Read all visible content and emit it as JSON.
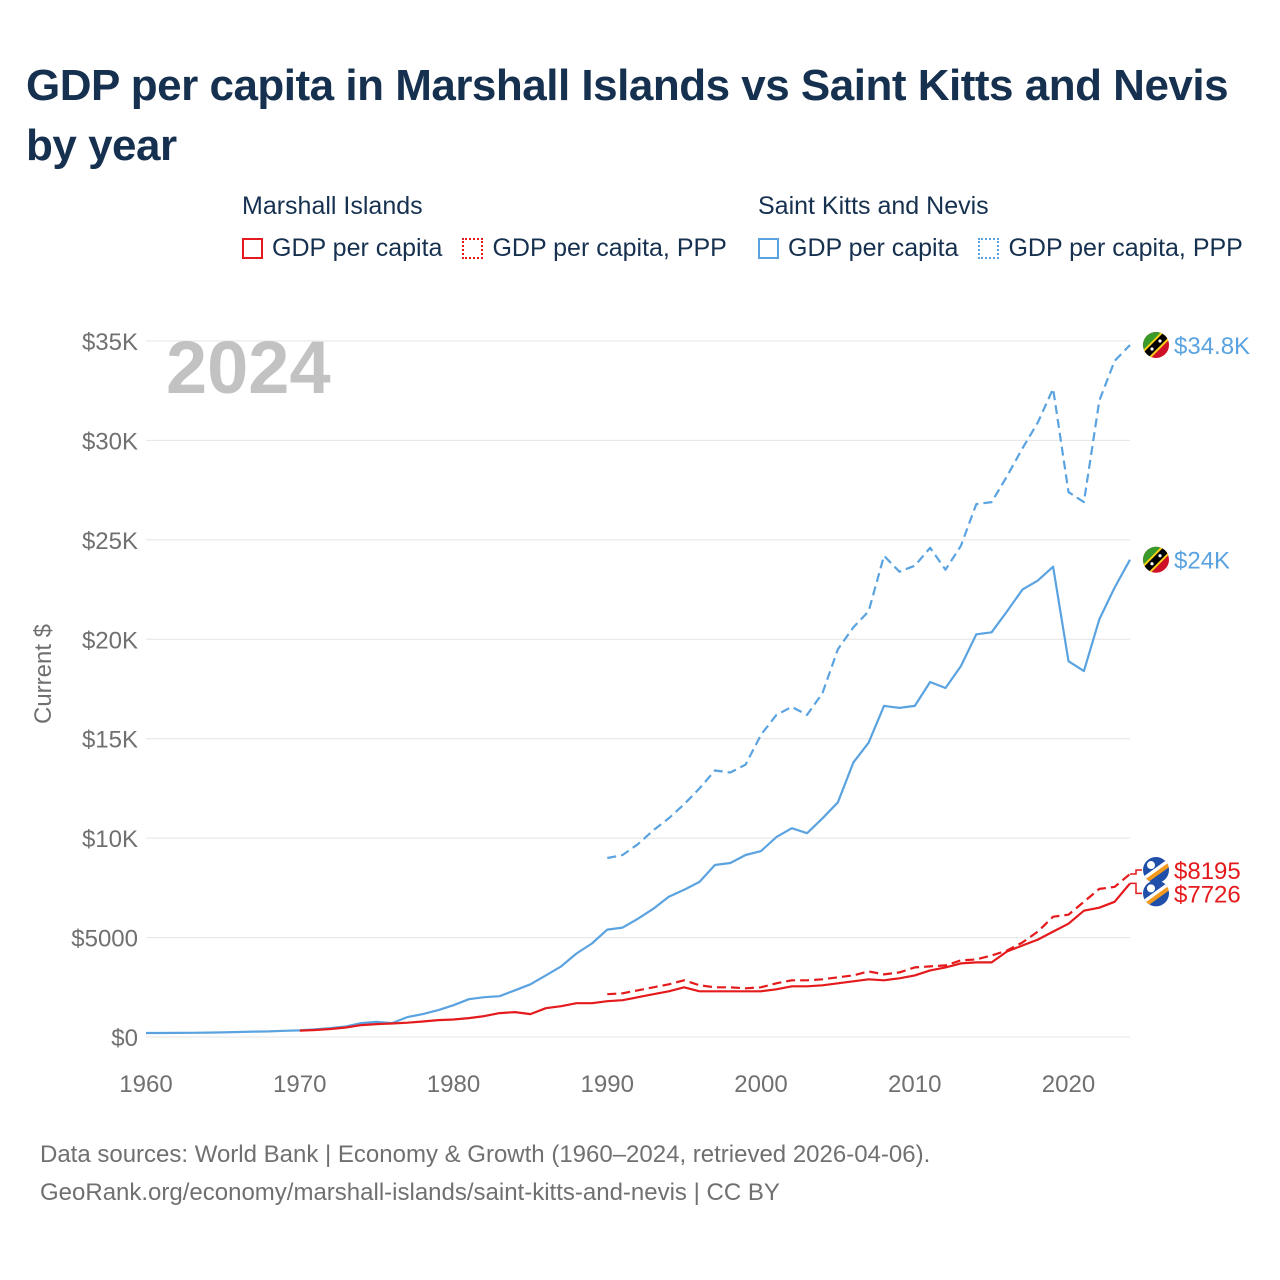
{
  "title": "GDP per capita in Marshall Islands vs Saint Kitts and Nevis by year",
  "year_watermark": "2024",
  "legend": {
    "groups": [
      {
        "name": "Marshall Islands",
        "color": "#e41a1c",
        "items": [
          {
            "label": "GDP per capita",
            "style": "solid"
          },
          {
            "label": "GDP per capita, PPP",
            "style": "dotted"
          }
        ]
      },
      {
        "name": "Saint Kitts and Nevis",
        "color": "#5aa3e0",
        "items": [
          {
            "label": "GDP per capita",
            "style": "solid"
          },
          {
            "label": "GDP per capita, PPP",
            "style": "dotted"
          }
        ]
      }
    ]
  },
  "footer": {
    "line1": "Data sources: World Bank | Economy & Growth (1960–2024, retrieved 2026-04-06).",
    "line2": "GeoRank.org/economy/marshall-islands/saint-kitts-and-nevis | CC BY"
  },
  "chart_data": {
    "type": "line",
    "title": "GDP per capita in Marshall Islands vs Saint Kitts and Nevis by year",
    "xlabel": "",
    "ylabel": "Current $",
    "xlim": [
      1960,
      2024
    ],
    "ylim": [
      0,
      35000
    ],
    "x_ticks": [
      1960,
      1970,
      1980,
      1990,
      2000,
      2010,
      2020
    ],
    "x_tick_labels": [
      "1960",
      "1970",
      "1980",
      "1990",
      "2000",
      "2010",
      "2020"
    ],
    "y_ticks": [
      0,
      5000,
      10000,
      15000,
      20000,
      25000,
      30000,
      35000
    ],
    "y_tick_labels": [
      "$0",
      "$5000",
      "$10K",
      "$15K",
      "$20K",
      "$25K",
      "$30K",
      "$35K"
    ],
    "grid": true,
    "series": [
      {
        "name": "Saint Kitts and Nevis GDP per capita, PPP",
        "color": "#5aa3e0",
        "dash": "dashed",
        "end_label": "$34.8K",
        "points": [
          [
            1990,
            9000
          ],
          [
            1991,
            9150
          ],
          [
            1992,
            9700
          ],
          [
            1993,
            10400
          ],
          [
            1994,
            11000
          ],
          [
            1995,
            11700
          ],
          [
            1996,
            12500
          ],
          [
            1997,
            13400
          ],
          [
            1998,
            13300
          ],
          [
            1999,
            13700
          ],
          [
            2000,
            15200
          ],
          [
            2001,
            16200
          ],
          [
            2002,
            16600
          ],
          [
            2003,
            16200
          ],
          [
            2004,
            17300
          ],
          [
            2005,
            19500
          ],
          [
            2006,
            20600
          ],
          [
            2007,
            21400
          ],
          [
            2008,
            24200
          ],
          [
            2009,
            23400
          ],
          [
            2010,
            23700
          ],
          [
            2011,
            24600
          ],
          [
            2012,
            23500
          ],
          [
            2013,
            24700
          ],
          [
            2014,
            26800
          ],
          [
            2015,
            26900
          ],
          [
            2016,
            28200
          ],
          [
            2017,
            29600
          ],
          [
            2018,
            30900
          ],
          [
            2019,
            32600
          ],
          [
            2020,
            27400
          ],
          [
            2021,
            26900
          ],
          [
            2022,
            32000
          ],
          [
            2023,
            34000
          ],
          [
            2024,
            34800
          ]
        ]
      },
      {
        "name": "Saint Kitts and Nevis GDP per capita",
        "color": "#5aa3e0",
        "dash": "solid",
        "end_label": "$24K",
        "points": [
          [
            1960,
            200
          ],
          [
            1961,
            200
          ],
          [
            1962,
            205
          ],
          [
            1963,
            210
          ],
          [
            1964,
            220
          ],
          [
            1965,
            230
          ],
          [
            1966,
            250
          ],
          [
            1967,
            270
          ],
          [
            1968,
            280
          ],
          [
            1969,
            310
          ],
          [
            1970,
            330
          ],
          [
            1971,
            380
          ],
          [
            1972,
            450
          ],
          [
            1973,
            530
          ],
          [
            1974,
            700
          ],
          [
            1975,
            760
          ],
          [
            1976,
            700
          ],
          [
            1977,
            1000
          ],
          [
            1978,
            1150
          ],
          [
            1979,
            1350
          ],
          [
            1980,
            1600
          ],
          [
            1981,
            1900
          ],
          [
            1982,
            2000
          ],
          [
            1983,
            2050
          ],
          [
            1984,
            2350
          ],
          [
            1985,
            2650
          ],
          [
            1986,
            3100
          ],
          [
            1987,
            3550
          ],
          [
            1988,
            4200
          ],
          [
            1989,
            4700
          ],
          [
            1990,
            5400
          ],
          [
            1991,
            5500
          ],
          [
            1992,
            5950
          ],
          [
            1993,
            6450
          ],
          [
            1994,
            7050
          ],
          [
            1995,
            7400
          ],
          [
            1996,
            7800
          ],
          [
            1997,
            8650
          ],
          [
            1998,
            8750
          ],
          [
            1999,
            9150
          ],
          [
            2000,
            9350
          ],
          [
            2001,
            10050
          ],
          [
            2002,
            10500
          ],
          [
            2003,
            10250
          ],
          [
            2004,
            11000
          ],
          [
            2005,
            11800
          ],
          [
            2006,
            13800
          ],
          [
            2007,
            14800
          ],
          [
            2008,
            16650
          ],
          [
            2009,
            16550
          ],
          [
            2010,
            16650
          ],
          [
            2011,
            17850
          ],
          [
            2012,
            17550
          ],
          [
            2013,
            18650
          ],
          [
            2014,
            20250
          ],
          [
            2015,
            20350
          ],
          [
            2016,
            21400
          ],
          [
            2017,
            22500
          ],
          [
            2018,
            22950
          ],
          [
            2019,
            23650
          ],
          [
            2020,
            18900
          ],
          [
            2021,
            18400
          ],
          [
            2022,
            21000
          ],
          [
            2023,
            22600
          ],
          [
            2024,
            24000
          ]
        ]
      },
      {
        "name": "Marshall Islands GDP per capita, PPP",
        "color": "#e41a1c",
        "dash": "dashed",
        "end_label": "$8195",
        "points": [
          [
            1990,
            2150
          ],
          [
            1991,
            2200
          ],
          [
            1992,
            2350
          ],
          [
            1993,
            2500
          ],
          [
            1994,
            2650
          ],
          [
            1995,
            2850
          ],
          [
            1996,
            2600
          ],
          [
            1997,
            2500
          ],
          [
            1998,
            2500
          ],
          [
            1999,
            2450
          ],
          [
            2000,
            2500
          ],
          [
            2001,
            2700
          ],
          [
            2002,
            2850
          ],
          [
            2003,
            2850
          ],
          [
            2004,
            2900
          ],
          [
            2005,
            3000
          ],
          [
            2006,
            3100
          ],
          [
            2007,
            3300
          ],
          [
            2008,
            3150
          ],
          [
            2009,
            3250
          ],
          [
            2010,
            3500
          ],
          [
            2011,
            3550
          ],
          [
            2012,
            3600
          ],
          [
            2013,
            3850
          ],
          [
            2014,
            3900
          ],
          [
            2015,
            4100
          ],
          [
            2016,
            4350
          ],
          [
            2017,
            4750
          ],
          [
            2018,
            5300
          ],
          [
            2019,
            6050
          ],
          [
            2020,
            6150
          ],
          [
            2021,
            6800
          ],
          [
            2022,
            7450
          ],
          [
            2023,
            7550
          ],
          [
            2024,
            8195
          ]
        ]
      },
      {
        "name": "Marshall Islands GDP per capita",
        "color": "#e41a1c",
        "dash": "solid",
        "end_label": "$7726",
        "points": [
          [
            1970,
            320
          ],
          [
            1971,
            350
          ],
          [
            1972,
            400
          ],
          [
            1973,
            480
          ],
          [
            1974,
            600
          ],
          [
            1975,
            650
          ],
          [
            1976,
            680
          ],
          [
            1977,
            720
          ],
          [
            1978,
            780
          ],
          [
            1979,
            850
          ],
          [
            1980,
            880
          ],
          [
            1981,
            950
          ],
          [
            1982,
            1050
          ],
          [
            1983,
            1200
          ],
          [
            1984,
            1250
          ],
          [
            1985,
            1150
          ],
          [
            1986,
            1450
          ],
          [
            1987,
            1550
          ],
          [
            1988,
            1700
          ],
          [
            1989,
            1700
          ],
          [
            1990,
            1800
          ],
          [
            1991,
            1850
          ],
          [
            1992,
            2000
          ],
          [
            1993,
            2150
          ],
          [
            1994,
            2300
          ],
          [
            1995,
            2500
          ],
          [
            1996,
            2300
          ],
          [
            1997,
            2300
          ],
          [
            1998,
            2300
          ],
          [
            1999,
            2300
          ],
          [
            2000,
            2300
          ],
          [
            2001,
            2400
          ],
          [
            2002,
            2550
          ],
          [
            2003,
            2550
          ],
          [
            2004,
            2600
          ],
          [
            2005,
            2700
          ],
          [
            2006,
            2800
          ],
          [
            2007,
            2900
          ],
          [
            2008,
            2850
          ],
          [
            2009,
            2950
          ],
          [
            2010,
            3100
          ],
          [
            2011,
            3350
          ],
          [
            2012,
            3500
          ],
          [
            2013,
            3700
          ],
          [
            2014,
            3750
          ],
          [
            2015,
            3750
          ],
          [
            2016,
            4300
          ],
          [
            2017,
            4600
          ],
          [
            2018,
            4900
          ],
          [
            2019,
            5300
          ],
          [
            2020,
            5700
          ],
          [
            2021,
            6350
          ],
          [
            2022,
            6500
          ],
          [
            2023,
            6800
          ],
          [
            2024,
            7726
          ]
        ]
      }
    ]
  }
}
